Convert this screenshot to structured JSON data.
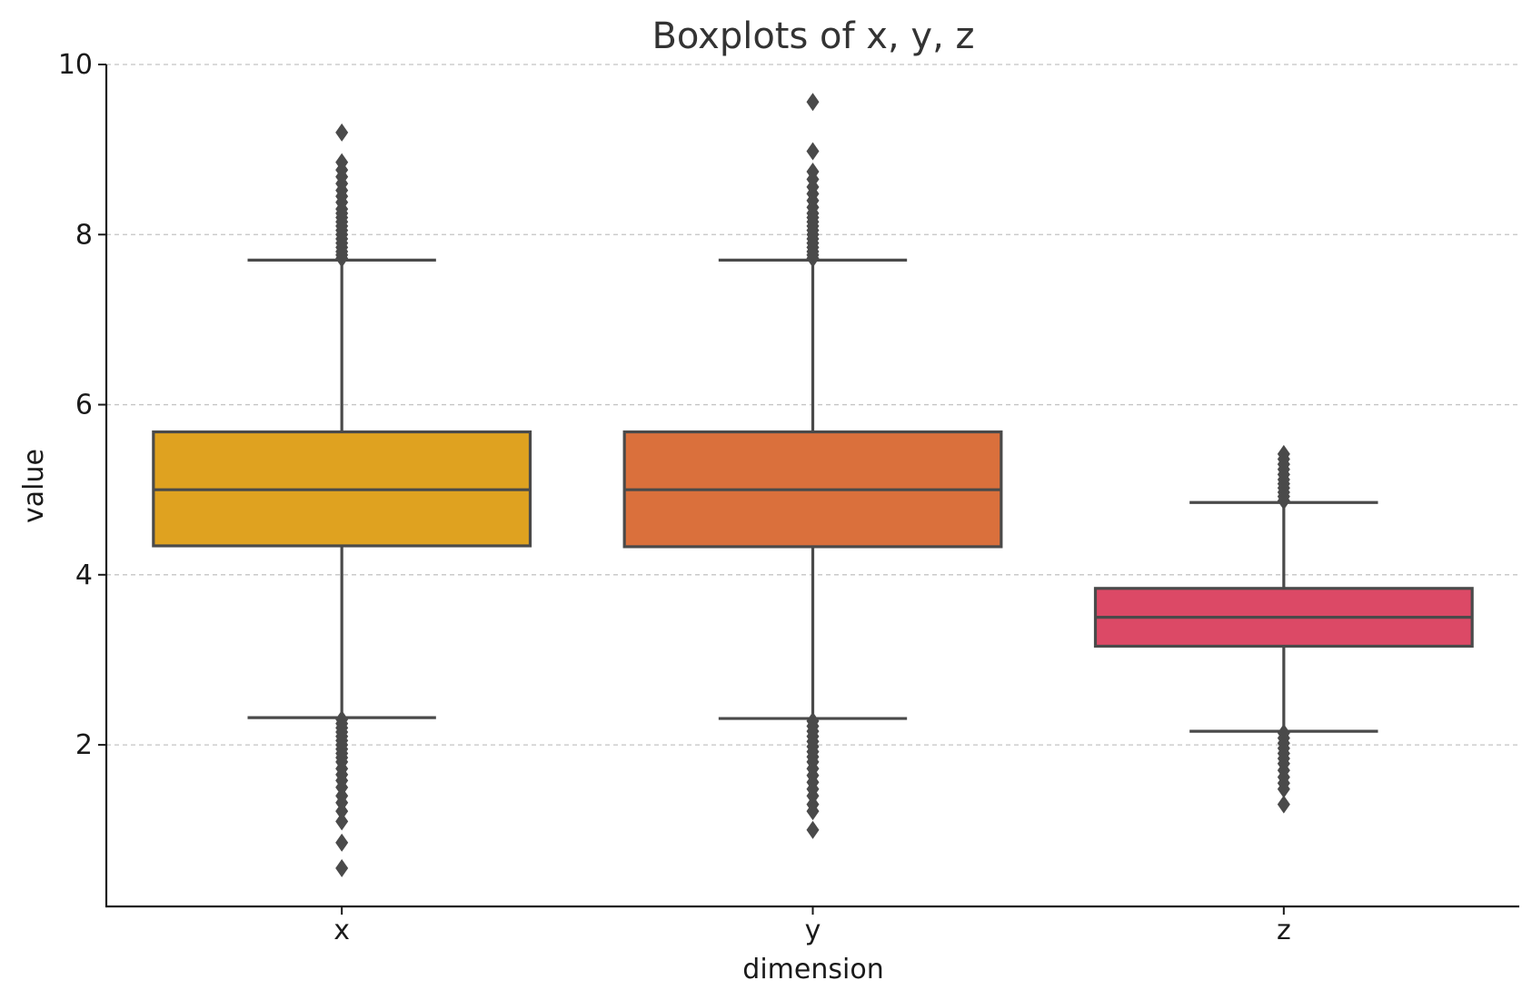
{
  "chart_data": {
    "type": "boxplot",
    "title": "Boxplots of x, y, z",
    "xlabel": "dimension",
    "ylabel": "value",
    "ylim": [
      0.1,
      10
    ],
    "yticks": [
      2,
      4,
      6,
      8,
      10
    ],
    "grid": "horizontal dashed",
    "categories": [
      "x",
      "y",
      "z"
    ],
    "colors": [
      "#dfa220",
      "#da703c",
      "#dc4966"
    ],
    "boxes": [
      {
        "category": "x",
        "whisker_low": 2.32,
        "q1": 4.34,
        "median": 5.0,
        "q3": 5.68,
        "whisker_high": 7.7,
        "fliers_high": [
          7.72,
          7.76,
          7.8,
          7.85,
          7.9,
          7.95,
          8.0,
          8.05,
          8.1,
          8.15,
          8.2,
          8.25,
          8.3,
          8.38,
          8.45,
          8.52,
          8.6,
          8.68,
          8.76,
          8.85,
          9.2
        ],
        "fliers_low": [
          2.3,
          2.25,
          2.2,
          2.15,
          2.1,
          2.05,
          2.0,
          1.95,
          1.9,
          1.85,
          1.8,
          1.72,
          1.65,
          1.58,
          1.5,
          1.4,
          1.32,
          1.22,
          1.1,
          0.85,
          0.55
        ]
      },
      {
        "category": "y",
        "whisker_low": 2.31,
        "q1": 4.33,
        "median": 5.0,
        "q3": 5.68,
        "whisker_high": 7.7,
        "fliers_high": [
          7.72,
          7.76,
          7.8,
          7.85,
          7.9,
          7.95,
          8.0,
          8.05,
          8.1,
          8.15,
          8.2,
          8.25,
          8.32,
          8.4,
          8.48,
          8.56,
          8.65,
          8.74,
          8.98,
          9.56
        ],
        "fliers_low": [
          2.28,
          2.22,
          2.16,
          2.1,
          2.04,
          1.98,
          1.92,
          1.86,
          1.8,
          1.72,
          1.64,
          1.56,
          1.48,
          1.4,
          1.3,
          1.22,
          1.0
        ]
      },
      {
        "category": "z",
        "whisker_low": 2.16,
        "q1": 3.16,
        "median": 3.5,
        "q3": 3.84,
        "whisker_high": 4.85,
        "fliers_high": [
          4.87,
          4.92,
          4.97,
          5.02,
          5.07,
          5.12,
          5.18,
          5.24,
          5.3,
          5.36,
          5.42
        ],
        "fliers_low": [
          2.14,
          2.08,
          2.02,
          1.96,
          1.9,
          1.84,
          1.78,
          1.7,
          1.62,
          1.55,
          1.48,
          1.3
        ]
      }
    ]
  }
}
